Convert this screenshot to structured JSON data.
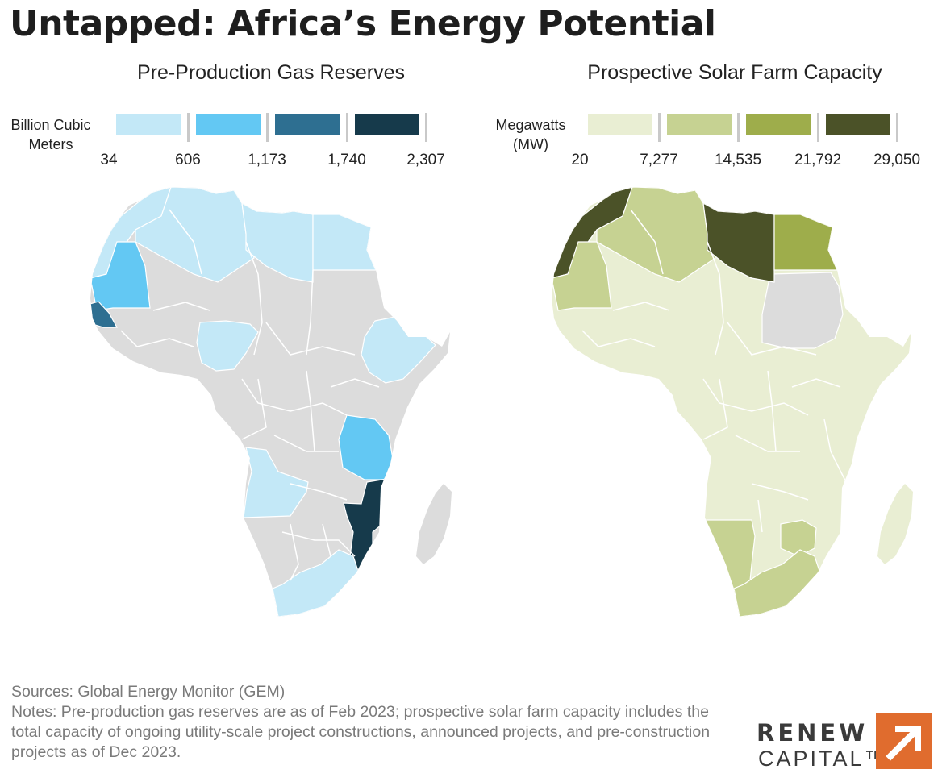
{
  "title": "Untapped: Africa’s Energy Potential",
  "gas": {
    "subtitle": "Pre-Production Gas Reserves",
    "legend_label_line1": "Billion Cubic",
    "legend_label_line2": "Meters",
    "breaks": [
      "34",
      "606",
      "1,173",
      "1,740",
      "2,307"
    ],
    "colors": [
      "#c3e8f7",
      "#63c8f3",
      "#2e6f91",
      "#163a4b"
    ],
    "no_data_color": "#dcdcdc",
    "highlighted": [
      {
        "country": "Morocco",
        "value_class": 0
      },
      {
        "country": "Algeria",
        "value_class": 0
      },
      {
        "country": "Libya",
        "value_class": 0
      },
      {
        "country": "Egypt",
        "value_class": 0
      },
      {
        "country": "Mauritania",
        "value_class": 1
      },
      {
        "country": "Senegal",
        "value_class": 2
      },
      {
        "country": "Nigeria",
        "value_class": 0
      },
      {
        "country": "Ethiopia",
        "value_class": 0
      },
      {
        "country": "Tanzania",
        "value_class": 1
      },
      {
        "country": "Angola",
        "value_class": 0
      },
      {
        "country": "Mozambique",
        "value_class": 3
      },
      {
        "country": "South Africa",
        "value_class": 0
      }
    ]
  },
  "solar": {
    "subtitle": "Prospective Solar Farm Capacity",
    "legend_label_line1": "Megawatts",
    "legend_label_line2": "(MW)",
    "breaks": [
      "20",
      "7,277",
      "14,535",
      "21,792",
      "29,050"
    ],
    "colors": [
      "#e9eed3",
      "#c6d292",
      "#9ead4b",
      "#4b5228"
    ],
    "no_data_color": "#dcdcdc",
    "highlighted": [
      {
        "country": "Morocco",
        "value_class": 3
      },
      {
        "country": "Libya",
        "value_class": 3
      },
      {
        "country": "Egypt",
        "value_class": 2
      },
      {
        "country": "Algeria",
        "value_class": 1
      },
      {
        "country": "Mauritania",
        "value_class": 1
      },
      {
        "country": "Namibia",
        "value_class": 1
      },
      {
        "country": "South Africa",
        "value_class": 1
      },
      {
        "country": "Zimbabwe",
        "value_class": 1
      },
      {
        "country": "Sudan",
        "value_class": null
      }
    ]
  },
  "notes": {
    "sources": "Sources: Global Energy Monitor (GEM)",
    "notes": "Notes: Pre-production gas reserves are as of Feb 2023; prospective solar farm capacity includes the total capacity of ongoing utility-scale project constructions, announced projects, and pre-construction projects as of Dec 2023."
  },
  "logo": {
    "line1": "RENEW",
    "line2": "CAPITAL™",
    "icon": "arrow-up-right-icon",
    "accent_color": "#e06c2e"
  }
}
